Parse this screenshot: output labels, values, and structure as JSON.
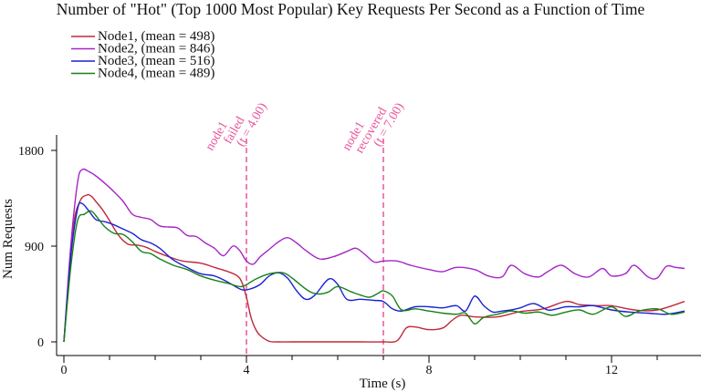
{
  "chart_data": {
    "type": "line",
    "title": "Number of \"Hot\" (Top 1000 Most Popular) Key Requests Per Second as a Function of Time",
    "xlabel": "Time (s)",
    "ylabel": "Num Requests",
    "xlim": [
      -0.2,
      13.9
    ],
    "ylim": [
      -50,
      1950
    ],
    "xticks": [
      0,
      4,
      8,
      12
    ],
    "xtick_labels": [
      "0",
      "4",
      "8",
      "12"
    ],
    "yticks": [
      0,
      900,
      1800
    ],
    "ytick_labels": [
      "0",
      "900",
      "1800"
    ],
    "grid": false,
    "legend_position": "top-left",
    "annotation_color": "#e8559a",
    "annotations": [
      {
        "x": 4.0,
        "lines": [
          "node1",
          "failed",
          "(t = 4.00)"
        ]
      },
      {
        "x": 7.0,
        "lines": [
          "node1",
          "recovered",
          "(t = 7.00)"
        ]
      }
    ],
    "series": [
      {
        "name": "Node1, (mean = 498)",
        "color": "#c0283c",
        "x": [
          0,
          0.2,
          0.35,
          0.5,
          0.6,
          0.7,
          0.85,
          1.0,
          1.2,
          1.4,
          1.6,
          1.8,
          2.0,
          2.3,
          2.6,
          3.0,
          3.3,
          3.6,
          3.8,
          3.9,
          4.0,
          4.1,
          4.2,
          4.3,
          4.5,
          4.7,
          5.0,
          5.5,
          6.0,
          6.5,
          7.0,
          7.3,
          7.5,
          7.7,
          8.0,
          8.3,
          8.5,
          8.7,
          9.0,
          9.5,
          10.0,
          10.5,
          11.0,
          11.3,
          11.7,
          12.0,
          12.5,
          13.0,
          13.6
        ],
        "y": [
          0,
          1050,
          1320,
          1380,
          1370,
          1320,
          1240,
          1140,
          1000,
          920,
          910,
          890,
          850,
          800,
          760,
          740,
          700,
          660,
          620,
          560,
          420,
          230,
          120,
          60,
          5,
          0,
          0,
          0,
          0,
          0,
          0,
          10,
          130,
          140,
          115,
          130,
          200,
          250,
          235,
          235,
          285,
          310,
          380,
          350,
          340,
          340,
          300,
          300,
          380
        ]
      },
      {
        "name": "Node2, (mean = 846)",
        "color": "#a626c6",
        "x": [
          0,
          0.15,
          0.3,
          0.4,
          0.55,
          0.7,
          0.9,
          1.1,
          1.3,
          1.5,
          1.7,
          1.9,
          2.1,
          2.3,
          2.5,
          2.7,
          2.9,
          3.1,
          3.3,
          3.5,
          3.7,
          3.85,
          4.0,
          4.15,
          4.3,
          4.5,
          4.7,
          4.9,
          5.1,
          5.3,
          5.6,
          5.9,
          6.2,
          6.4,
          6.6,
          6.8,
          7.0,
          7.3,
          7.6,
          8.0,
          8.3,
          8.6,
          9.0,
          9.3,
          9.6,
          9.8,
          10.1,
          10.4,
          10.6,
          10.9,
          11.2,
          11.5,
          11.8,
          12.0,
          12.3,
          12.5,
          12.8,
          13.0,
          13.2,
          13.4,
          13.6
        ],
        "y": [
          0,
          900,
          1500,
          1620,
          1600,
          1560,
          1490,
          1410,
          1320,
          1200,
          1170,
          1150,
          1090,
          1080,
          1070,
          1000,
          990,
          930,
          880,
          810,
          900,
          860,
          760,
          730,
          800,
          870,
          940,
          980,
          930,
          860,
          780,
          800,
          850,
          880,
          820,
          750,
          760,
          760,
          720,
          680,
          660,
          700,
          680,
          620,
          610,
          720,
          640,
          610,
          660,
          720,
          640,
          610,
          690,
          620,
          640,
          720,
          610,
          600,
          710,
          700,
          690
        ]
      },
      {
        "name": "Node3, (mean = 516)",
        "color": "#1a22d2",
        "x": [
          0,
          0.15,
          0.3,
          0.4,
          0.55,
          0.7,
          0.9,
          1.1,
          1.3,
          1.5,
          1.7,
          1.9,
          2.1,
          2.4,
          2.7,
          3.0,
          3.3,
          3.6,
          3.9,
          4.1,
          4.3,
          4.5,
          4.7,
          4.9,
          5.1,
          5.3,
          5.5,
          5.8,
          6.0,
          6.2,
          6.5,
          6.8,
          7.0,
          7.2,
          7.4,
          7.7,
          8.0,
          8.3,
          8.6,
          8.8,
          9.0,
          9.2,
          9.4,
          9.6,
          9.8,
          10.0,
          10.3,
          10.6,
          10.8,
          11.0,
          11.3,
          11.6,
          12.0,
          12.4,
          12.8,
          13.2,
          13.6
        ],
        "y": [
          0,
          800,
          1250,
          1300,
          1230,
          1150,
          1130,
          1100,
          1060,
          1020,
          960,
          930,
          880,
          770,
          700,
          640,
          620,
          560,
          490,
          500,
          540,
          620,
          650,
          600,
          480,
          400,
          440,
          590,
          540,
          400,
          400,
          390,
          380,
          310,
          290,
          330,
          330,
          320,
          340,
          290,
          430,
          340,
          280,
          290,
          300,
          320,
          360,
          300,
          310,
          330,
          330,
          340,
          300,
          280,
          270,
          260,
          290
        ]
      },
      {
        "name": "Node4, (mean = 489)",
        "color": "#168016",
        "x": [
          0,
          0.15,
          0.3,
          0.45,
          0.6,
          0.75,
          0.9,
          1.1,
          1.3,
          1.5,
          1.7,
          1.9,
          2.1,
          2.4,
          2.7,
          3.0,
          3.3,
          3.6,
          3.9,
          4.2,
          4.5,
          4.8,
          5.0,
          5.2,
          5.4,
          5.6,
          5.8,
          6.0,
          6.3,
          6.5,
          6.7,
          6.9,
          7.0,
          7.2,
          7.4,
          7.7,
          8.0,
          8.3,
          8.6,
          8.8,
          9.0,
          9.2,
          9.5,
          9.8,
          10.1,
          10.4,
          10.7,
          11.0,
          11.3,
          11.6,
          12.0,
          12.3,
          12.6,
          13.0,
          13.3,
          13.6
        ],
        "y": [
          0,
          700,
          1140,
          1200,
          1230,
          1160,
          1080,
          1020,
          1010,
          940,
          850,
          830,
          780,
          720,
          680,
          620,
          580,
          550,
          520,
          590,
          640,
          650,
          600,
          530,
          470,
          450,
          470,
          520,
          470,
          440,
          420,
          460,
          480,
          430,
          300,
          310,
          290,
          270,
          260,
          270,
          170,
          230,
          260,
          290,
          270,
          280,
          250,
          280,
          300,
          260,
          330,
          240,
          290,
          310,
          260,
          280
        ]
      }
    ]
  }
}
